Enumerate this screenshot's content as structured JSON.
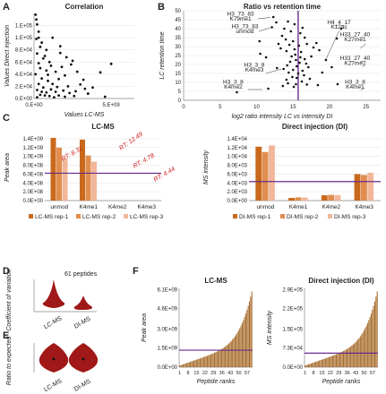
{
  "colors": {
    "purple": "#6a2c8e",
    "bar1": "#c8691c",
    "bar2": "#e08d4e",
    "bar3": "#f2b79a",
    "violin": "#a01818",
    "grid": "#e6e6e6",
    "brown": "#a66b2a"
  },
  "panels": {
    "A": "A",
    "B": "B",
    "C": "C",
    "D": "D",
    "E": "E",
    "F": "F"
  },
  "chart_data": [
    {
      "id": "A",
      "type": "scatter",
      "title": "Correlation",
      "xlabel": "Values LC-MS",
      "ylabel": "Values Direct injection",
      "xticks": [
        "0.E+00",
        "5.E+09"
      ],
      "yticks": [
        "0.E+00",
        "2.E+04",
        "4.E+04",
        "6.E+04",
        "8.E+04",
        "1.E+05",
        "1.E+05"
      ],
      "xlim": [
        0,
        6500000000.0
      ],
      "ylim": [
        0,
        140000.0
      ],
      "points": [
        [
          100000000.0,
          138000.0
        ],
        [
          150000000.0,
          130000.0
        ],
        [
          200000000.0,
          122000.0
        ],
        [
          300000000.0,
          110000.0
        ],
        [
          300000000.0,
          100000.0
        ],
        [
          150000000.0,
          98000.0
        ],
        [
          500000000.0,
          92000.0
        ],
        [
          1200000000.0,
          100000.0
        ],
        [
          800000000.0,
          80000.0
        ],
        [
          700000000.0,
          70000.0
        ],
        [
          600000000.0,
          66000.0
        ],
        [
          1000000000.0,
          60000.0
        ],
        [
          1700000000.0,
          75000.0
        ],
        [
          2100000000.0,
          68000.0
        ],
        [
          300000000.0,
          58000.0
        ],
        [
          400000000.0,
          50000.0
        ],
        [
          800000000.0,
          46000.0
        ],
        [
          1400000000.0,
          44000.0
        ],
        [
          1800000000.0,
          52000.0
        ],
        [
          2400000000.0,
          56000.0
        ],
        [
          2000000000.0,
          38000.0
        ],
        [
          1600000000.0,
          32000.0
        ],
        [
          500000000.0,
          33000.0
        ],
        [
          900000000.0,
          29000.0
        ],
        [
          1200000000.0,
          24000.0
        ],
        [
          300000000.0,
          24000.0
        ],
        [
          2800000000.0,
          44000.0
        ],
        [
          3000000000.0,
          23000.0
        ],
        [
          3200000000.0,
          31000.0
        ],
        [
          3800000000.0,
          18000.0
        ],
        [
          4300000000.0,
          43000.0
        ],
        [
          5000000000.0,
          57000.0
        ],
        [
          200000000.0,
          14000.0
        ],
        [
          500000000.0,
          11000.0
        ],
        [
          800000000.0,
          10000.0
        ],
        [
          1100000000.0,
          15000.0
        ],
        [
          1400000000.0,
          11000.0
        ],
        [
          1900000000.0,
          13000.0
        ],
        [
          2300000000.0,
          9000.0
        ],
        [
          400000000.0,
          6000.0
        ],
        [
          700000000.0,
          5000.0
        ],
        [
          1000000000.0,
          4000.0
        ],
        [
          1300000000.0,
          2000.0
        ],
        [
          1600000000.0,
          5000.0
        ],
        [
          2000000000.0,
          3000.0
        ],
        [
          2600000000.0,
          4000.0
        ],
        [
          200000000.0,
          2000.0
        ],
        [
          3500000000.0,
          8000.0
        ],
        [
          4600000000.0,
          3000.0
        ],
        [
          600000000.0,
          18000.0
        ],
        [
          1500000000.0,
          19000.0
        ],
        [
          2200000000.0,
          20000.0
        ],
        [
          900000000.0,
          39000.0
        ],
        [
          1700000000.0,
          86000.0
        ],
        [
          2500000000.0,
          62000.0
        ],
        [
          200000000.0,
          74000.0
        ],
        [
          3300000000.0,
          16000.0
        ],
        [
          100000000.0,
          40000.0
        ],
        [
          400000000.0,
          85000.0
        ],
        [
          2700000000.0,
          12000.0
        ],
        [
          1100000000.0,
          54000.0
        ]
      ]
    },
    {
      "id": "B",
      "type": "scatter",
      "title": "Ratio vs retention time",
      "xlabel": "log2 ratio intensity LC vs intensity DI",
      "ylabel": "LC retention time",
      "xticks": [
        "0",
        "5",
        "10",
        "15",
        "20",
        "25"
      ],
      "yticks": [
        "0",
        "5",
        "10",
        "15",
        "20",
        "25",
        "30",
        "35",
        "40",
        "45",
        "50"
      ],
      "xlim": [
        0,
        27
      ],
      "ylim": [
        0,
        50
      ],
      "vline": 15.7,
      "labels": [
        {
          "text": "H3_73_83",
          "x": 7.8,
          "y": 47.2
        },
        {
          "text": "K79me1",
          "x": 7.8,
          "y": 44.5
        },
        {
          "text": "H3_73_83",
          "x": 8.4,
          "y": 40.2
        },
        {
          "text": "unmod",
          "x": 8.4,
          "y": 37.5
        },
        {
          "text": "H4_4_17",
          "x": 21.3,
          "y": 42.6
        },
        {
          "text": "K12ac",
          "x": 21.3,
          "y": 40.0
        },
        {
          "text": "H33_27_40",
          "x": 23.5,
          "y": 35.8
        },
        {
          "text": "K27me1",
          "x": 23.5,
          "y": 33.1
        },
        {
          "text": "H33_27_40",
          "x": 23.5,
          "y": 22.5
        },
        {
          "text": "K27me2",
          "x": 23.5,
          "y": 19.8
        },
        {
          "text": "H3_3_8",
          "x": 9.7,
          "y": 18.8
        },
        {
          "text": "K4me3",
          "x": 9.7,
          "y": 16.1
        },
        {
          "text": "H3_3_8",
          "x": 6.8,
          "y": 9.2
        },
        {
          "text": "K4me2",
          "x": 6.8,
          "y": 6.5
        },
        {
          "text": "H3_3_8",
          "x": 23.5,
          "y": 9.2
        },
        {
          "text": "K4me1",
          "x": 23.5,
          "y": 6.5
        }
      ],
      "points": [
        [
          12.3,
          46.5
        ],
        [
          12.7,
          43.5
        ],
        [
          12.1,
          40.8
        ],
        [
          14.3,
          44
        ],
        [
          15.2,
          42.5
        ],
        [
          13.8,
          40
        ],
        [
          14.7,
          38.5
        ],
        [
          16.3,
          40.5
        ],
        [
          16,
          37.5
        ],
        [
          13.5,
          36
        ],
        [
          14,
          34
        ],
        [
          15,
          33
        ],
        [
          14.5,
          31
        ],
        [
          15.8,
          30.5
        ],
        [
          16.9,
          31.5
        ],
        [
          17.8,
          29.5
        ],
        [
          18.2,
          32
        ],
        [
          13.3,
          29
        ],
        [
          14.1,
          27.5
        ],
        [
          15.2,
          28.5
        ],
        [
          16.1,
          27
        ],
        [
          15.3,
          25.5
        ],
        [
          14.8,
          24.5
        ],
        [
          16,
          24
        ],
        [
          16.6,
          23
        ],
        [
          15.4,
          22.5
        ],
        [
          14.6,
          21.5
        ],
        [
          15.9,
          21
        ],
        [
          16.8,
          20.5
        ],
        [
          14.2,
          19.5
        ],
        [
          15.5,
          19
        ],
        [
          17.1,
          18.5
        ],
        [
          12.8,
          18
        ],
        [
          13.7,
          17.5
        ],
        [
          15,
          17
        ],
        [
          16.3,
          16.5
        ],
        [
          14.4,
          15.5
        ],
        [
          15.7,
          15
        ],
        [
          16.5,
          14
        ],
        [
          14.9,
          13
        ],
        [
          15.5,
          12.5
        ],
        [
          17.3,
          12
        ],
        [
          16.2,
          10.5
        ],
        [
          14.3,
          9.5
        ],
        [
          15.4,
          9
        ],
        [
          16.9,
          8.8
        ],
        [
          18.4,
          8.5
        ],
        [
          13.6,
          8
        ],
        [
          15.1,
          7.5
        ],
        [
          10.4,
          33
        ],
        [
          10.5,
          26
        ],
        [
          11.3,
          24
        ],
        [
          19.5,
          22.5
        ],
        [
          20.3,
          18.5
        ],
        [
          21.1,
          9
        ],
        [
          7.3,
          4.5
        ],
        [
          21,
          34.5
        ],
        [
          21.6,
          40
        ],
        [
          11.6,
          6.5
        ],
        [
          18.6,
          28
        ],
        [
          19,
          15.5
        ],
        [
          13,
          31.5
        ],
        [
          17.5,
          24.5
        ],
        [
          14.1,
          11.5
        ],
        [
          16.6,
          35
        ]
      ]
    },
    {
      "id": "C1",
      "type": "bar",
      "title": "LC-MS",
      "ylabel": "Peak area",
      "categories": [
        "unmod",
        "K4me1",
        "K4me2",
        "K4me3"
      ],
      "yticks": [
        "0.0E+00",
        "2.0E+08",
        "4.0E+08",
        "6.0E+08",
        "8.0E+08",
        "1.0E+09",
        "1.2E+09",
        "1.4E+09"
      ],
      "ylim": [
        0,
        1500000000.0
      ],
      "hline": 620000000.0,
      "series": [
        {
          "name": "LC-MS rep-1",
          "values": [
            1420000000.0,
            1380000000.0,
            0,
            0
          ]
        },
        {
          "name": "LC-MS rep-2",
          "values": [
            1200000000.0,
            1020000000.0,
            0,
            0
          ]
        },
        {
          "name": "LC-MS rep-3",
          "values": [
            950000000.0,
            880000000.0,
            0,
            0
          ]
        }
      ],
      "annotations": [
        "RT: 8.31",
        "RT: 12.49",
        "RT: 4.78",
        "RT: 4.44"
      ]
    },
    {
      "id": "C2",
      "type": "bar",
      "title": "Direct injection (DI)",
      "ylabel": "MS intensity",
      "categories": [
        "unmod",
        "K4me1",
        "K4me2",
        "K4me3"
      ],
      "yticks": [
        "0.0E+00",
        "2.0E+03",
        "4.0E+03",
        "6.0E+03",
        "8.0E+03",
        "1.0E+04",
        "1.2E+04",
        "1.4E+04"
      ],
      "ylim": [
        0,
        15000.0
      ],
      "hline": 4300.0,
      "series": [
        {
          "name": "DI-MS rep-1",
          "values": [
            12200.0,
            600,
            1200,
            6000
          ]
        },
        {
          "name": "DI-MS rep-2",
          "values": [
            11000.0,
            750,
            1300,
            5800
          ]
        },
        {
          "name": "DI-MS rep-3",
          "values": [
            12500.0,
            700,
            1250,
            6300
          ]
        }
      ]
    },
    {
      "id": "D",
      "type": "violin",
      "ylabel": "Coefficient of variation",
      "annotation": "61 peptides",
      "categories": [
        "LC-MS",
        "DI-MS"
      ]
    },
    {
      "id": "E",
      "type": "violin",
      "ylabel": "Ratio to expected",
      "categories": [
        "LC-MS",
        "DI-MS"
      ]
    },
    {
      "id": "F1",
      "type": "bar",
      "title": "LC-MS",
      "ylabel": "Peak area",
      "xlabel": "Peptide ranks",
      "xticks": [
        "1",
        "8",
        "15",
        "22",
        "29",
        "36",
        "43",
        "50",
        "57"
      ],
      "yticks": [
        "0.0E+00",
        "1.5E+09",
        "3.0E+09",
        "4.6E+09",
        "6.1E+09"
      ],
      "ylim": [
        0,
        6500000000.0
      ],
      "hline": 1400000000.0
    },
    {
      "id": "F2",
      "type": "bar",
      "title": "Direct injection (DI)",
      "ylabel": "MS intensity",
      "xlabel": "Peptide ranks",
      "xticks": [
        "1",
        "8",
        "15",
        "22",
        "29",
        "36",
        "43",
        "50",
        "57"
      ],
      "yticks": [
        "0.0E+00",
        "7.3E+04",
        "1.5E+05",
        "2.2E+05",
        "2.9E+05"
      ],
      "ylim": [
        0,
        310000.0
      ],
      "hline": 55000.0
    }
  ]
}
